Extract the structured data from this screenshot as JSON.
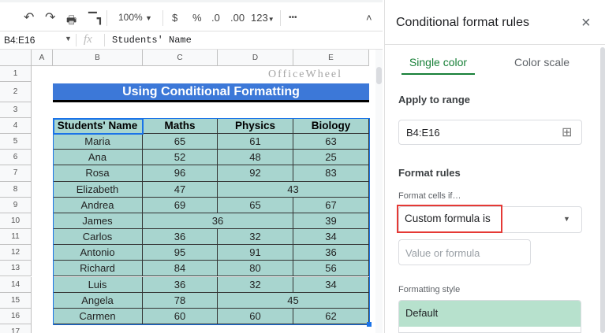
{
  "toolbar": {
    "zoom": "100%",
    "currency": "$",
    "percent": "%",
    "dec_decrease": ".0",
    "dec_increase": ".00",
    "format": "123",
    "more": "•••",
    "icons": [
      "undo-icon",
      "redo-icon",
      "print-icon",
      "paint-format-icon",
      "chevron-up-icon"
    ]
  },
  "formula_bar": {
    "name_box": "B4:E16",
    "fx": "fx",
    "content": "Students' Name"
  },
  "columns": [
    "A",
    "B",
    "C",
    "D",
    "E"
  ],
  "rows": [
    "1",
    "2",
    "3",
    "4",
    "5",
    "6",
    "7",
    "8",
    "9",
    "10",
    "11",
    "12",
    "13",
    "14",
    "15",
    "16",
    "17"
  ],
  "sheet": {
    "title": "Using Conditional Formatting",
    "headers": [
      "Students' Name",
      "Maths",
      "Physics",
      "Biology"
    ],
    "data": [
      {
        "name": "Maria",
        "cells": [
          "65",
          "61",
          "63"
        ]
      },
      {
        "name": "Ana",
        "cells": [
          "52",
          "48",
          "25"
        ]
      },
      {
        "name": "Rosa",
        "cells": [
          "96",
          "92",
          "83"
        ]
      },
      {
        "name": "Elizabeth",
        "cells": [
          "47",
          "43"
        ],
        "merge": "DE"
      },
      {
        "name": "Andrea",
        "cells": [
          "69",
          "65",
          "67"
        ]
      },
      {
        "name": "James",
        "cells": [
          "36",
          "39"
        ],
        "merge": "CD"
      },
      {
        "name": "Carlos",
        "cells": [
          "36",
          "32",
          "34"
        ]
      },
      {
        "name": "Antonio",
        "cells": [
          "95",
          "91",
          "36"
        ]
      },
      {
        "name": "Richard",
        "cells": [
          "84",
          "80",
          "56"
        ]
      },
      {
        "name": "Luis",
        "cells": [
          "36",
          "32",
          "34"
        ]
      },
      {
        "name": "Angela",
        "cells": [
          "78",
          "45"
        ],
        "merge": "DE"
      },
      {
        "name": "Carmen",
        "cells": [
          "60",
          "60",
          "62"
        ]
      }
    ],
    "watermark": "OfficeWheel",
    "colors": {
      "title_bg": "#3c78d8",
      "table_bg": "#a8d5cf",
      "selection": "#1a73e8"
    }
  },
  "panel": {
    "title": "Conditional format rules",
    "tabs": [
      {
        "label": "Single color",
        "active": true
      },
      {
        "label": "Color scale",
        "active": false
      }
    ],
    "apply_to_range_label": "Apply to range",
    "range_value": "B4:E16",
    "format_rules_label": "Format rules",
    "format_cells_if_label": "Format cells if…",
    "condition_value": "Custom formula is",
    "value_placeholder": "Value or formula",
    "formatting_style_label": "Formatting style",
    "style_value": "Default",
    "colors": {
      "accent": "#188038",
      "highlight_box": "#e53935",
      "style_bg": "#b7e1cd"
    }
  }
}
